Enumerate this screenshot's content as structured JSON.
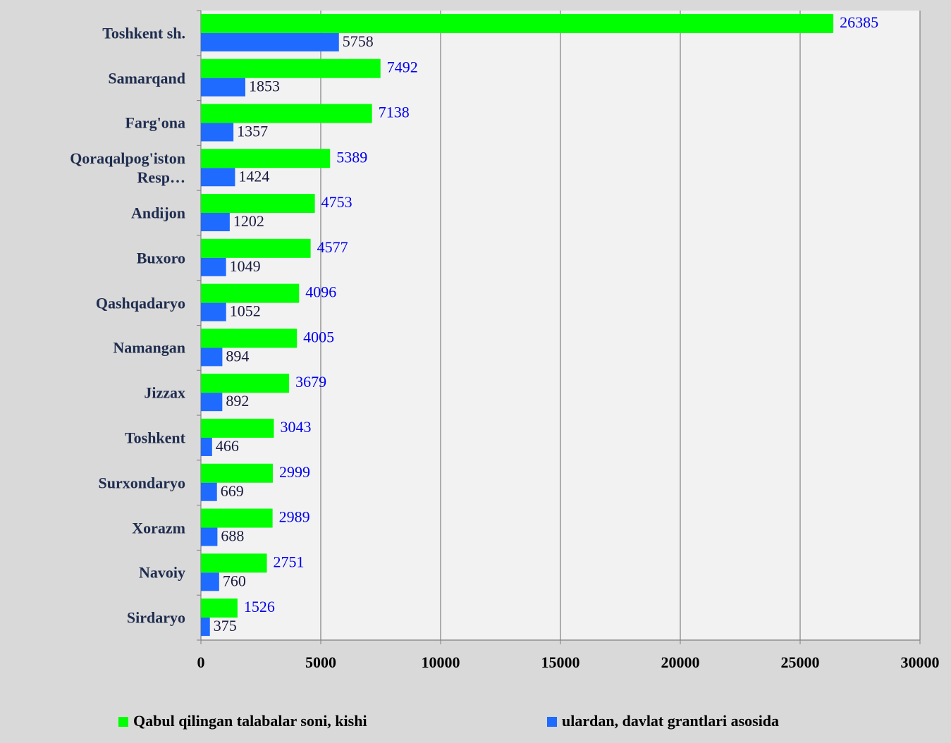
{
  "chart_data": {
    "type": "barh",
    "categories": [
      "Toshkent sh.",
      "Samarqand",
      "Farg'ona",
      "Qoraqalpog'iston Resp…",
      "Andijon",
      "Buxoro",
      "Qashqadaryo",
      "Namangan",
      "Jizzax",
      "Toshkent",
      "Surxondaryo",
      "Xorazm",
      "Navoiy",
      "Sirdaryo"
    ],
    "series": [
      {
        "name": "Qabul qilingan talabalar soni, kishi",
        "color": "#00ff00",
        "values": [
          26385,
          7492,
          7138,
          5389,
          4753,
          4577,
          4096,
          4005,
          3679,
          3043,
          2999,
          2989,
          2751,
          1526
        ]
      },
      {
        "name": "ulardan, davlat grantlari asosida",
        "color": "#1f6bff",
        "values": [
          5758,
          1853,
          1357,
          1424,
          1202,
          1049,
          1052,
          894,
          892,
          466,
          669,
          688,
          760,
          375
        ]
      }
    ],
    "xlim": [
      0,
      30000
    ],
    "xticks": [
      0,
      5000,
      10000,
      15000,
      20000,
      25000,
      30000
    ],
    "grid": true,
    "legend": "bottom"
  }
}
